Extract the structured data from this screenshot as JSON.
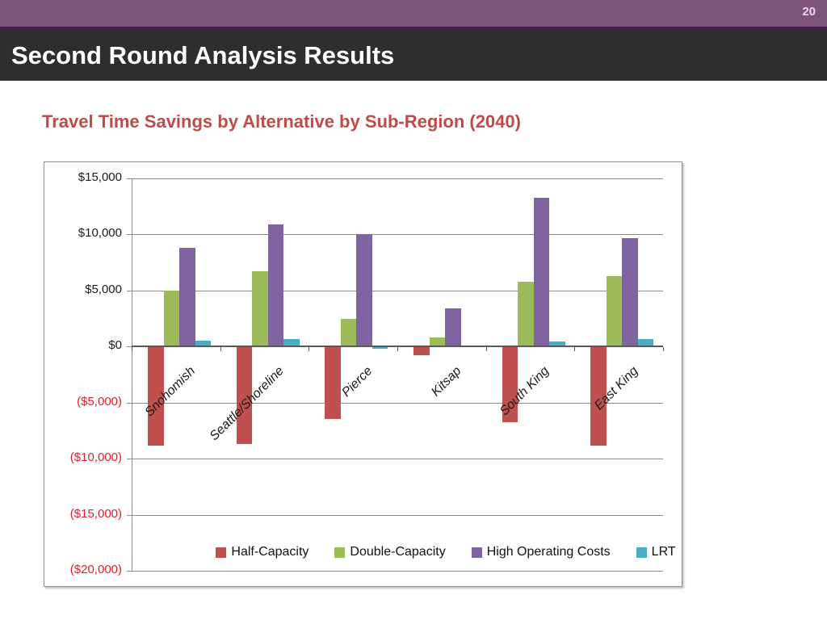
{
  "slide": {
    "page_number": "20",
    "title": "Second Round Analysis Results",
    "subtitle": "Travel Time Savings by Alternative by Sub-Region (2040)"
  },
  "colors": {
    "top_bar": "#7d557a",
    "top_bar_line": "#3b2741",
    "header_bg": "#2e2e2e",
    "header_text": "#ffffff",
    "page_number_text": "#ecd9ec",
    "subtitle_text": "#be4b48",
    "positive_label": "#1a1a1a",
    "negative_label": "#e02026",
    "gridline": "#8c8c8c",
    "axis_line": "#595959",
    "chart_border": "#909090"
  },
  "chart_data": {
    "type": "bar",
    "title": "Travel Time Savings by Alternative by Sub-Region (2040)",
    "xlabel": "",
    "ylabel": "",
    "categories": [
      "Snohomish",
      "Seattle/Shoreline",
      "Pierce",
      "Kitsap",
      "South King",
      "East King"
    ],
    "series": [
      {
        "name": "Half-Capacity",
        "color": "#C0504D",
        "values": [
          -8800,
          -8600,
          -6400,
          -700,
          -6700,
          -8800
        ]
      },
      {
        "name": "Double-Capacity",
        "color": "#9BBB59",
        "values": [
          5000,
          6700,
          2500,
          800,
          5800,
          6300
        ]
      },
      {
        "name": "High Operating Costs",
        "color": "#8064A2",
        "values": [
          8800,
          10900,
          10000,
          3400,
          13300,
          9700
        ]
      },
      {
        "name": "LRT",
        "color": "#4BACC6",
        "values": [
          500,
          650,
          -100,
          0,
          450,
          650
        ]
      }
    ],
    "ylim": [
      -20000,
      15000
    ],
    "ytick_step": 5000,
    "ytick_values": [
      15000,
      10000,
      5000,
      0,
      -5000,
      -10000,
      -15000,
      -20000
    ],
    "ytick_labels": [
      "$15,000",
      "$10,000",
      "$5,000",
      "$0",
      "($5,000)",
      "($10,000)",
      "($15,000)",
      "($20,000)"
    ],
    "grid": true,
    "legend_position": "bottom",
    "legend_entries": [
      "Half-Capacity",
      "Double-Capacity",
      "High Operating Costs",
      "LRT"
    ],
    "value_format": "currency, negatives in red parentheses"
  }
}
